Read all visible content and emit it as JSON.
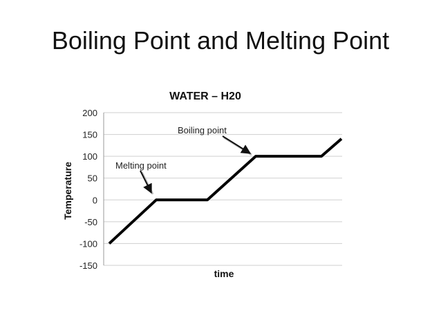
{
  "slide": {
    "title": "Boiling Point and Melting Point"
  },
  "chart_data": {
    "type": "line",
    "title": "WATER – H20",
    "xlabel": "time",
    "ylabel": "Temperature",
    "ylim": [
      -150,
      200
    ],
    "yticks": [
      200,
      150,
      100,
      50,
      0,
      -50,
      -100,
      -150
    ],
    "ytick_labels": [
      "200",
      "150",
      "100",
      "50",
      "0",
      "-50",
      "-100",
      "-150"
    ],
    "grid": true,
    "series": [
      {
        "values": [
          -100,
          0,
          0,
          100,
          100,
          140
        ]
      }
    ],
    "annotations": [
      {
        "text": "Melting point",
        "target_index": 1
      },
      {
        "text": "Boiling point",
        "target_index": 3
      }
    ]
  }
}
